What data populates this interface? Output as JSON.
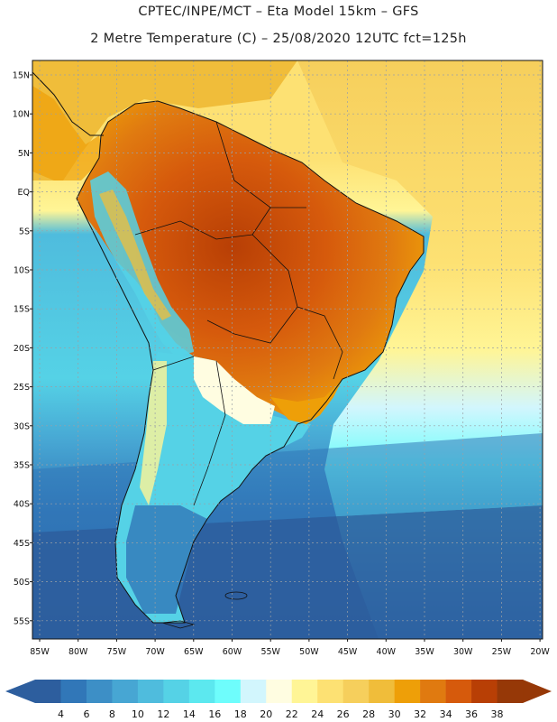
{
  "header": {
    "line1": "CPTEC/INPE/MCT –  Eta Model 15km – GFS",
    "line2": "2 Metre Temperature (C) – 25/08/2020 12UTC fct=125h"
  },
  "map": {
    "lat_labels": [
      "15N",
      "10N",
      "5N",
      "EQ",
      "5S",
      "10S",
      "15S",
      "20S",
      "25S",
      "30S",
      "35S",
      "40S",
      "45S",
      "50S",
      "55S"
    ],
    "lon_labels": [
      "85W",
      "80W",
      "75W",
      "70W",
      "65W",
      "60W",
      "55W",
      "50W",
      "45W",
      "40W",
      "35W",
      "30W",
      "25W",
      "20W"
    ]
  },
  "legend": {
    "labels": [
      "4",
      "6",
      "8",
      "10",
      "12",
      "14",
      "16",
      "18",
      "20",
      "22",
      "24",
      "26",
      "28",
      "30",
      "32",
      "34",
      "36",
      "38"
    ],
    "colors": [
      "#2d5e9e",
      "#3177b8",
      "#3d8fc6",
      "#47a6d3",
      "#4fbcdd",
      "#55d2e6",
      "#5ce8ef",
      "#6efdfc",
      "#d2f6fd",
      "#fffde1",
      "#fff596",
      "#fde173",
      "#f6cf5c",
      "#f0bd3a",
      "#ee9f08",
      "#e07a10",
      "#d65a0c",
      "#b83f05",
      "#963807"
    ],
    "low_arrow_color": "#2d5e9e",
    "high_arrow_color": "#963807"
  }
}
